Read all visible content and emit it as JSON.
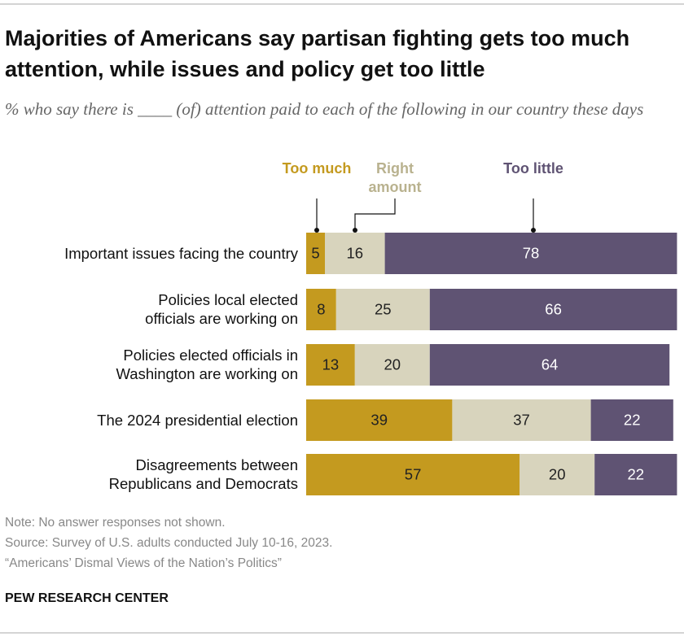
{
  "chart_data": {
    "type": "stacked-bar",
    "title": "Majorities of Americans say partisan fighting gets too much attention, while issues and policy get too little",
    "subtitle": "% who say there is ____ (of) attention paid to each of the following in our country these days",
    "categories": [
      "Important issues facing the country",
      "Policies local elected officials are working on",
      "Policies elected officials in Washington are working on",
      "The 2024 presidential election",
      "Disagreements between Republicans and Democrats"
    ],
    "series": [
      {
        "name": "Too much",
        "color": "#c49a1f",
        "label_color": "#c49a1f",
        "text_color": "#222222",
        "values": [
          5,
          8,
          13,
          39,
          57
        ]
      },
      {
        "name": "Right amount",
        "color": "#d8d4bd",
        "label_color": "#b9b28f",
        "text_color": "#222222",
        "values": [
          16,
          25,
          20,
          37,
          20
        ]
      },
      {
        "name": "Too little",
        "color": "#5f5373",
        "label_color": "#5f5373",
        "text_color": "#ffffff",
        "values": [
          78,
          66,
          64,
          22,
          22
        ]
      }
    ],
    "xlim": [
      0,
      100
    ],
    "notes": [
      "Note: No answer responses not shown.",
      "Source: Survey of U.S. adults conducted July 10-16, 2023.",
      "“Americans’ Dismal Views of the Nation’s Politics”"
    ],
    "source_org": "PEW RESEARCH CENTER"
  }
}
